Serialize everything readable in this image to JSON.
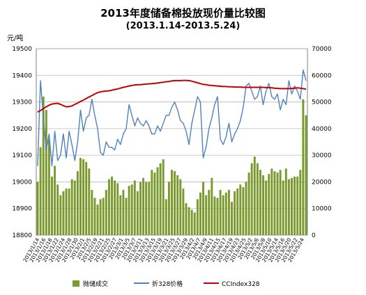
{
  "chart_data": {
    "type": "bar",
    "title": "2013年度储备棉投放现价量比较图",
    "subtitle": "(2013.1.14-2013.5.24)",
    "y_left_unit": "元/吨",
    "y_left_range": [
      18800,
      19500
    ],
    "y_left_ticks": [
      18800,
      18900,
      19000,
      19100,
      19200,
      19300,
      19400,
      19500
    ],
    "y_right_range": [
      0,
      70000
    ],
    "y_right_ticks": [
      0,
      10000,
      20000,
      30000,
      40000,
      50000,
      60000,
      70000
    ],
    "grid": true,
    "legend_position": "bottom",
    "x_tick_labels": [
      "2013/1/14",
      "2013/1/16",
      "2013/1/18",
      "2013/1/22",
      "2013/1/24",
      "2013/1/28",
      "2013/1/30",
      "2013/2/1",
      "2013/2/5",
      "2013/2/19",
      "2013/2/21",
      "2013/2/25",
      "2013/2/27",
      "2013/3/1",
      "2013/3/5",
      "2013/3/7",
      "2013/3/11",
      "2013/3/13",
      "2013/3/15",
      "2013/3/19",
      "2013/3/21",
      "2013/3/25",
      "2013/3/27",
      "2013/3/29",
      "2013/4/2",
      "2013/4/7",
      "2013/4/9",
      "2013/4/11",
      "2013/4/15",
      "2013/4/17",
      "2013/4/19",
      "2013/4/23",
      "2013/4/25",
      "2013/5/2",
      "2013/5/6",
      "2013/5/8",
      "2013/5/10",
      "2013/5/14",
      "2013/5/16",
      "2013/5/20",
      "2013/5/22",
      "2013/5/24"
    ],
    "series": [
      {
        "name": "抛储成交",
        "type": "bar",
        "axis": "right",
        "color": "#7a9a2e",
        "values": [
          20000,
          33000,
          52000,
          47000,
          36000,
          22000,
          26000,
          19000,
          15000,
          16500,
          17500,
          17500,
          21000,
          20500,
          24000,
          29000,
          28500,
          27500,
          25000,
          17000,
          14000,
          11500,
          13500,
          14000,
          17000,
          21000,
          22000,
          20500,
          19500,
          15000,
          17000,
          14000,
          18500,
          19000,
          20500,
          16500,
          20000,
          21500,
          20000,
          20000,
          24500,
          23500,
          25500,
          27000,
          28500,
          13500,
          20000,
          24500,
          24000,
          22500,
          21000,
          17500,
          12000,
          10500,
          9500,
          8500,
          13500,
          16000,
          20000,
          15000,
          17000,
          21500,
          14500,
          14000,
          17000,
          15000,
          16000,
          17000,
          12500,
          16500,
          17500,
          19000,
          18000,
          20000,
          23500,
          27000,
          29500,
          27000,
          24500,
          22500,
          20500,
          23000,
          25000,
          24000,
          23500,
          24500,
          20500,
          25000,
          21000,
          21500,
          22000,
          22000,
          24500,
          51000,
          45000
        ],
        "tick_every": 2
      },
      {
        "name": "折328价格",
        "type": "line",
        "axis": "left",
        "color": "#4f81bd",
        "values": [
          19060,
          19380,
          19240,
          19120,
          19180,
          19060,
          19190,
          19080,
          19100,
          19180,
          19090,
          19190,
          19140,
          19080,
          19150,
          19270,
          19190,
          19240,
          19250,
          19310,
          19250,
          19200,
          19110,
          19100,
          19150,
          19130,
          19130,
          19120,
          19160,
          19140,
          19180,
          19200,
          19290,
          19250,
          19210,
          19240,
          19220,
          19210,
          19230,
          19210,
          19180,
          19180,
          19210,
          19190,
          19220,
          19250,
          19250,
          19280,
          19300,
          19270,
          19230,
          19220,
          19190,
          19140,
          19220,
          19270,
          19320,
          19300,
          19090,
          19130,
          19200,
          19240,
          19290,
          19320,
          19160,
          19140,
          19170,
          19220,
          19150,
          19180,
          19200,
          19230,
          19280,
          19360,
          19370,
          19340,
          19310,
          19320,
          19360,
          19290,
          19340,
          19370,
          19320,
          19310,
          19330,
          19270,
          19310,
          19290,
          19380,
          19330,
          19360,
          19340,
          19310,
          19420,
          19380
        ],
        "tick_every": 2
      },
      {
        "name": "CCIndex328",
        "type": "line",
        "axis": "left",
        "color": "#c00000",
        "values": [
          19262,
          19268,
          19275,
          19282,
          19288,
          19292,
          19294,
          19295,
          19291,
          19286,
          19282,
          19283,
          19285,
          19291,
          19296,
          19302,
          19307,
          19313,
          19319,
          19324,
          19330,
          19335,
          19338,
          19340,
          19341,
          19342,
          19344,
          19347,
          19349,
          19352,
          19355,
          19357,
          19360,
          19362,
          19364,
          19365,
          19365,
          19366,
          19367,
          19368,
          19369,
          19370,
          19371,
          19373,
          19374,
          19376,
          19377,
          19379,
          19380,
          19380,
          19380,
          19381,
          19381,
          19380,
          19378,
          19375,
          19372,
          19369,
          19366,
          19365,
          19363,
          19362,
          19361,
          19360,
          19359,
          19358,
          19358,
          19357,
          19357,
          19356,
          19356,
          19356,
          19355,
          19355,
          19355,
          19355,
          19355,
          19355,
          19355,
          19355,
          19354,
          19354,
          19353,
          19352,
          19351,
          19350,
          19350,
          19350,
          19350,
          19351,
          19352,
          19353,
          19352,
          19350,
          19348
        ],
        "tick_every": 2
      }
    ]
  }
}
